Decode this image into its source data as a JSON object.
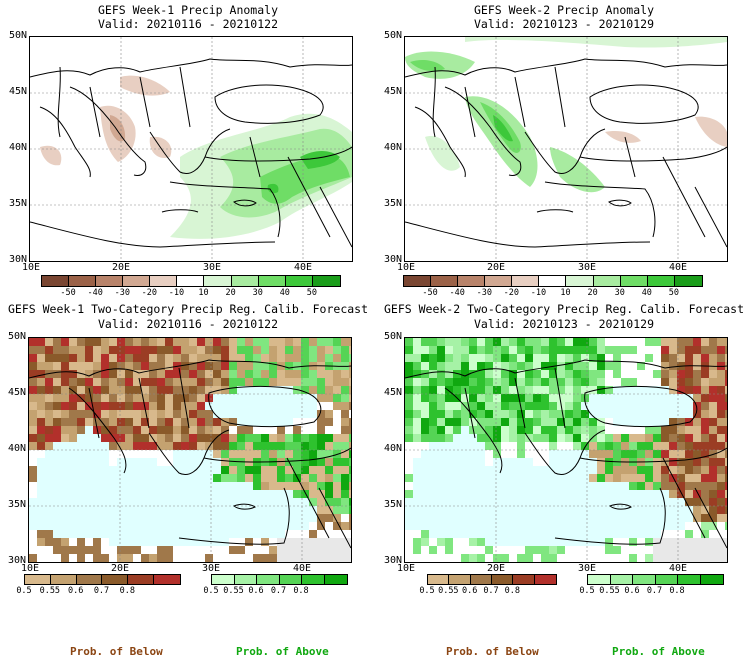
{
  "panels": [
    {
      "title": "GEFS Week-1 Precip Anomaly",
      "valid": "Valid: 20210116 - 20210122"
    },
    {
      "title": "GEFS Week-2 Precip Anomaly",
      "valid": "Valid: 20210123 - 20210129"
    },
    {
      "title": "GEFS Week-1 Two-Category Precip Reg. Calib. Forecast",
      "valid": "Valid: 20210116 - 20210122"
    },
    {
      "title": "GEFS Week-2 Two-Category Precip Reg. Calib. Forecast",
      "valid": "Valid: 20210123 - 20210129"
    }
  ],
  "map": {
    "lat_labels": [
      "50N",
      "45N",
      "40N",
      "35N",
      "30N"
    ],
    "lon_labels": [
      "10E",
      "20E",
      "30E",
      "40E"
    ],
    "colors": {
      "sea_prob": "#e0ffff",
      "land_prob": "#ffffff",
      "grey_area": "#e8e8e8",
      "grid": "#888888"
    }
  },
  "anomaly_colorbar": {
    "ticks": [
      "-50",
      "-40",
      "-30",
      "-20",
      "-10",
      "10",
      "20",
      "30",
      "40",
      "50"
    ],
    "colors": [
      "#7a4632",
      "#9b6248",
      "#b8836a",
      "#d1a892",
      "#e8cfc2",
      "#ffffff",
      "#d8f5d4",
      "#a8eba0",
      "#6fdd66",
      "#3dc83a",
      "#1a9d1a"
    ]
  },
  "below_colorbar": {
    "ticks": [
      "0.5",
      "0.55",
      "0.6",
      "0.7",
      "0.8"
    ],
    "colors": [
      "#d8b98c",
      "#c4a270",
      "#a0784a",
      "#8a5a2a",
      "#9b3d24",
      "#b2302b"
    ],
    "label": "Prob. of Below",
    "label_color": "#8b4513"
  },
  "above_colorbar": {
    "ticks": [
      "0.5",
      "0.55",
      "0.6",
      "0.7",
      "0.8"
    ],
    "colors": [
      "#ccffcc",
      "#a6f2a6",
      "#80e680",
      "#55d455",
      "#2ec22e",
      "#10a810"
    ],
    "label": "Prob. of Above",
    "label_color": "#10a810"
  }
}
